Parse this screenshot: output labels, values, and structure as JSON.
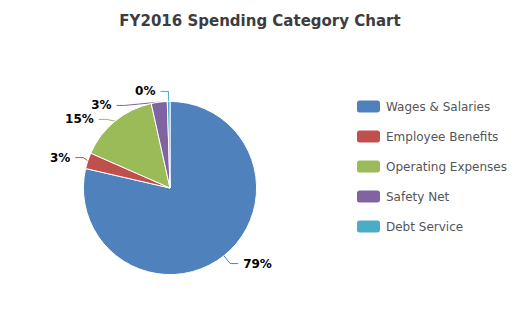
{
  "chart_data": {
    "type": "pie",
    "title": "FY2016 Spending Category Chart",
    "categories": [
      "Wages & Salaries",
      "Employee Benefits",
      "Operating Expenses",
      "Safety Net",
      "Debt Service"
    ],
    "values": [
      79,
      3,
      15,
      3,
      0.5
    ],
    "value_labels": [
      "79%",
      "3%",
      "15%",
      "3%",
      "0%"
    ],
    "colors": [
      "#4F81BD",
      "#C0504D",
      "#9BBB59",
      "#8064A2",
      "#4BACC6"
    ],
    "data_labels": true,
    "legend": "right"
  }
}
